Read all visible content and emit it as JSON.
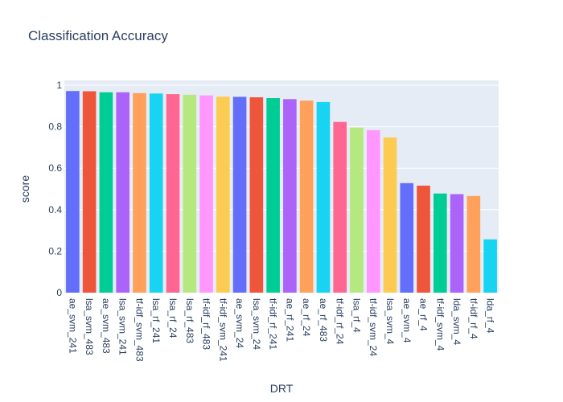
{
  "chart_data": {
    "type": "bar",
    "title": "Classification Accuracy",
    "xlabel": "DRT",
    "ylabel": "score",
    "ylim": [
      0,
      1.0
    ],
    "yticks": [
      0,
      0.2,
      0.4,
      0.6,
      0.8,
      1
    ],
    "ytick_labels": [
      "0",
      "0.2",
      "0.4",
      "0.6",
      "0.8",
      "1"
    ],
    "grid": true,
    "legend": "none",
    "plot_background": "#e5ecf6",
    "categories": [
      "ae_svm_241",
      "lsa_svm_483",
      "ae_svm_483",
      "lsa_svm_241",
      "tf-idf_svm_483",
      "lsa_rf_241",
      "lsa_rf_24",
      "lsa_rf_483",
      "tf-idf_rf_483",
      "tf-idf_svm_241",
      "ae_svm_24",
      "lsa_svm_24",
      "tf-idf_rf_241",
      "ae_rf_241",
      "ae_rf_24",
      "ae_rf_483",
      "tf-idf_rf_24",
      "lsa_rf_4",
      "tf-idf_svm_24",
      "lsa_svm_4",
      "ae_svm_4",
      "ae_rf_4",
      "tf-idf_svm_4",
      "lda_svm_4",
      "tf-idf_rf_4",
      "lda_rf_4"
    ],
    "values": [
      0.972,
      0.971,
      0.966,
      0.966,
      0.962,
      0.96,
      0.957,
      0.954,
      0.951,
      0.945,
      0.944,
      0.942,
      0.938,
      0.933,
      0.926,
      0.919,
      0.823,
      0.796,
      0.783,
      0.748,
      0.528,
      0.516,
      0.478,
      0.475,
      0.466,
      0.257
    ],
    "colors": [
      "#636efa",
      "#ef553b",
      "#00cc96",
      "#ab63fa",
      "#ffa15a",
      "#19d3f3",
      "#ff6692",
      "#b6e880",
      "#ff97ff",
      "#fecb52",
      "#636efa",
      "#ef553b",
      "#00cc96",
      "#ab63fa",
      "#ffa15a",
      "#19d3f3",
      "#ff6692",
      "#b6e880",
      "#ff97ff",
      "#fecb52",
      "#636efa",
      "#ef553b",
      "#00cc96",
      "#ab63fa",
      "#ffa15a",
      "#19d3f3"
    ]
  }
}
